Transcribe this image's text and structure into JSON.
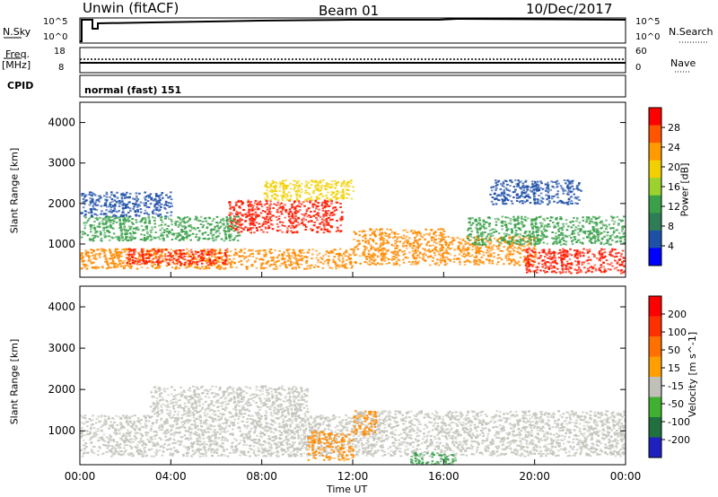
{
  "header": {
    "site": "Unwin (fitACF)",
    "beam": "Beam 01",
    "date": "10/Dec/2017"
  },
  "strip_labels": {
    "nsky": "N.Sky",
    "nsearch": "N.Search",
    "freq_top": "Freq.",
    "freq_unit": "[MHz]",
    "nave": "Nave",
    "cpid": "CPID",
    "cpid_value": "normal (fast) 151"
  },
  "strip_ticks": {
    "noise_left_top": "10^5",
    "noise_left_bottom": "10^0",
    "noise_right_top": "10^5",
    "noise_right_bottom": "10^0",
    "freq_left_top": "18",
    "freq_left_bottom": "8",
    "nave_right_top": "60",
    "nave_right_bottom": "0"
  },
  "colors": {
    "power_scale": [
      "#0000ff",
      "#1f50a8",
      "#2e7d57",
      "#3aa04a",
      "#9bd22e",
      "#f2d000",
      "#ff9a00",
      "#ff5500",
      "#ff0000"
    ],
    "velocity_scale": [
      "#2020c0",
      "#207040",
      "#40b030",
      "#c0c0b8",
      "#ffa000",
      "#ff7000",
      "#ff3000",
      "#ff0000"
    ]
  },
  "chart_data": [
    {
      "type": "heatmap",
      "name_panel": "power",
      "ylabel": "Slant Range [km]",
      "yticks": [
        "1000",
        "2000",
        "3000",
        "4000"
      ],
      "ylim": [
        180,
        4500
      ],
      "colorbar_label": "Power [dB]",
      "colorbar_ticks": [
        "4",
        "8",
        "12",
        "16",
        "20",
        "24",
        "28"
      ],
      "colorbar_range": [
        0,
        32
      ],
      "regions": [
        {
          "t": [
            0.0,
            12.0
          ],
          "r": [
            400,
            900
          ],
          "level": "orange"
        },
        {
          "t": [
            2.0,
            6.5
          ],
          "r": [
            500,
            900
          ],
          "level": "red"
        },
        {
          "t": [
            6.5,
            11.5
          ],
          "r": [
            1300,
            2100
          ],
          "level": "red"
        },
        {
          "t": [
            8.0,
            12.0
          ],
          "r": [
            2100,
            2600
          ],
          "level": "yellow"
        },
        {
          "t": [
            0.0,
            7.0
          ],
          "r": [
            1100,
            1700
          ],
          "level": "green"
        },
        {
          "t": [
            12.0,
            16.0
          ],
          "r": [
            500,
            1400
          ],
          "level": "orange"
        },
        {
          "t": [
            16.0,
            20.0
          ],
          "r": [
            500,
            1200
          ],
          "level": "orange"
        },
        {
          "t": [
            19.5,
            24.0
          ],
          "r": [
            300,
            900
          ],
          "level": "red"
        },
        {
          "t": [
            17.0,
            24.0
          ],
          "r": [
            1000,
            1700
          ],
          "level": "green"
        },
        {
          "t": [
            0.0,
            4.0
          ],
          "r": [
            1700,
            2300
          ],
          "level": "blue"
        },
        {
          "t": [
            18.0,
            22.0
          ],
          "r": [
            2000,
            2600
          ],
          "level": "blue"
        }
      ]
    },
    {
      "type": "heatmap",
      "name_panel": "velocity",
      "ylabel": "Slant Range [km]",
      "yticks": [
        "1000",
        "2000",
        "3000",
        "4000"
      ],
      "ylim": [
        180,
        4500
      ],
      "colorbar_label": "Velocity [m s^-1]",
      "colorbar_ticks": [
        "200",
        "100",
        "50",
        "15",
        "-15",
        "-50",
        "-100",
        "-200"
      ],
      "colorbar_range": [
        -250,
        250
      ],
      "regions": [
        {
          "t": [
            0.0,
            12.0
          ],
          "r": [
            400,
            1400
          ],
          "level": "grey"
        },
        {
          "t": [
            3.0,
            10.0
          ],
          "r": [
            1400,
            2100
          ],
          "level": "grey"
        },
        {
          "t": [
            12.0,
            24.0
          ],
          "r": [
            400,
            1500
          ],
          "level": "grey"
        },
        {
          "t": [
            10.0,
            12.0
          ],
          "r": [
            300,
            1000
          ],
          "level": "orange"
        },
        {
          "t": [
            12.0,
            13.0
          ],
          "r": [
            900,
            1500
          ],
          "level": "orange"
        },
        {
          "t": [
            14.5,
            16.5
          ],
          "r": [
            200,
            500
          ],
          "level": "green"
        }
      ]
    }
  ],
  "xaxis": {
    "label": "Time UT",
    "ticks": [
      "00:00",
      "04:00",
      "08:00",
      "12:00",
      "16:00",
      "20:00",
      "00:00"
    ]
  }
}
